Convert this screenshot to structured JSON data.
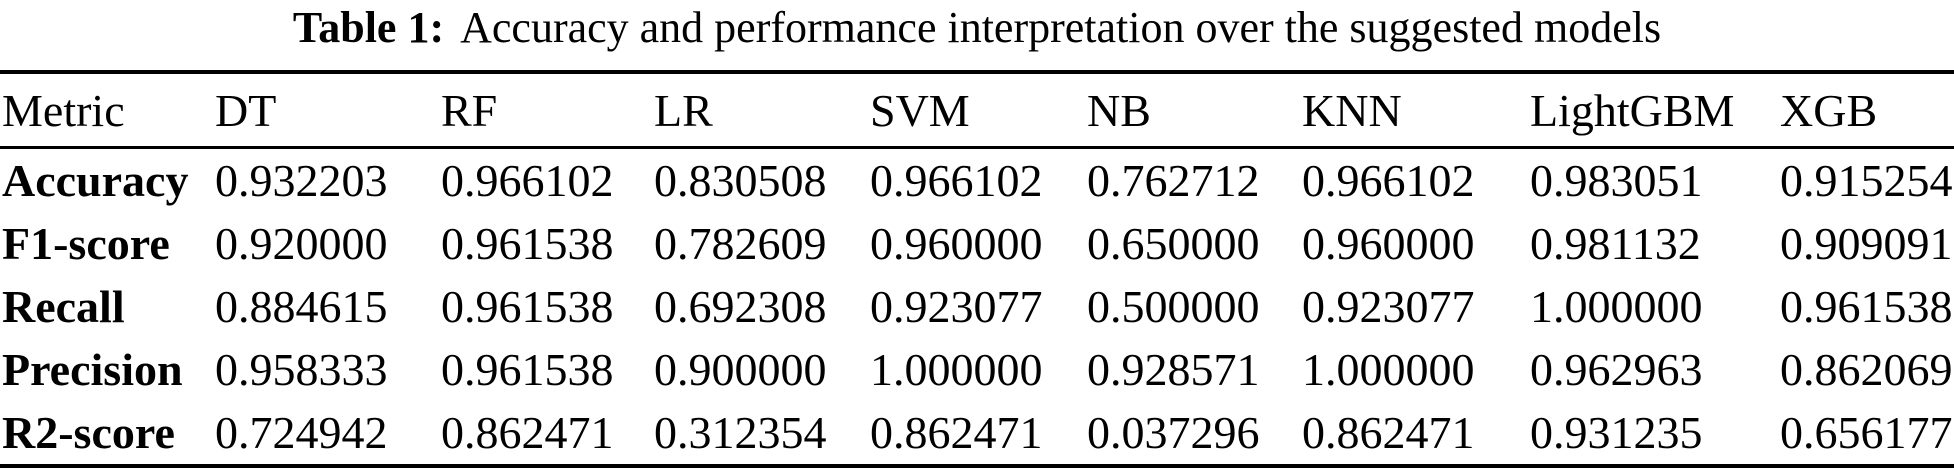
{
  "page": {
    "background": "#ffffff",
    "text_color": "#000000"
  },
  "caption": {
    "label": "Table 1:",
    "text": "Accuracy and performance interpretation over the suggested models"
  },
  "chart_data": {
    "type": "table",
    "title": "Table 1: Accuracy and performance interpretation over the suggested models",
    "columns": [
      "Metric",
      "DT",
      "RF",
      "LR",
      "SVM",
      "NB",
      "KNN",
      "LightGBM",
      "XGB"
    ],
    "rows": [
      [
        "Accuracy",
        "0.932203",
        "0.966102",
        "0.830508",
        "0.966102",
        "0.762712",
        "0.966102",
        "0.983051",
        "0.915254"
      ],
      [
        "F1-score",
        "0.920000",
        "0.961538",
        "0.782609",
        "0.960000",
        "0.650000",
        "0.960000",
        "0.981132",
        "0.909091"
      ],
      [
        "Recall",
        "0.884615",
        "0.961538",
        "0.692308",
        "0.923077",
        "0.500000",
        "0.923077",
        "1.000000",
        "0.961538"
      ],
      [
        "Precision",
        "0.958333",
        "0.961538",
        "0.900000",
        "1.000000",
        "0.928571",
        "1.000000",
        "0.962963",
        "0.862069"
      ],
      [
        "R2-score",
        "0.724942",
        "0.862471",
        "0.312354",
        "0.862471",
        "0.037296",
        "0.862471",
        "0.931235",
        "0.656177"
      ]
    ],
    "layout": {
      "rules": "top, below-header, bottom",
      "grid": "off",
      "column_alignment": "left"
    }
  }
}
